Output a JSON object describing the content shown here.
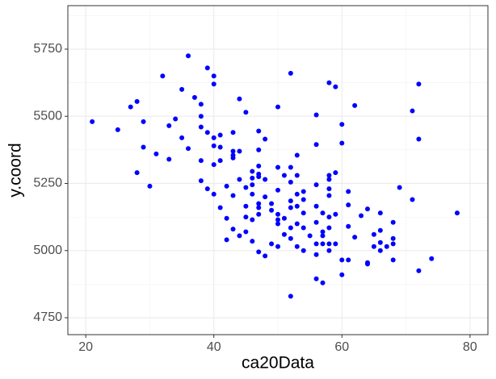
{
  "chart_data": {
    "type": "scatter",
    "x_label": "ca20Data",
    "y_label": "y.coord",
    "color": "#0000ff",
    "grid": true,
    "xlim": [
      17.2,
      82.8
    ],
    "xticks": [
      20,
      40,
      60,
      80
    ],
    "x_minor_ticks": [
      30,
      50,
      70
    ],
    "ylim": [
      4687,
      5912
    ],
    "yticks": [
      4750,
      5000,
      5250,
      5500,
      5750
    ],
    "y_minor_ticks": [
      4875,
      5125,
      5375,
      5625,
      5875
    ],
    "x": [
      21,
      25,
      27,
      28,
      29,
      28,
      29,
      30,
      31,
      32,
      33,
      34,
      33,
      35,
      35,
      36,
      36,
      37,
      38,
      38,
      38,
      38,
      38,
      39,
      39,
      39,
      40,
      40,
      40,
      40,
      40,
      40,
      41,
      41,
      41,
      41,
      42,
      42,
      42,
      43,
      43,
      43,
      43,
      43,
      43,
      44,
      44,
      44,
      44,
      45,
      45,
      45,
      45,
      45,
      46,
      46,
      46,
      46,
      46,
      46,
      47,
      47,
      47,
      47,
      47,
      47,
      47,
      47,
      47,
      48,
      48,
      48,
      48,
      49,
      49,
      49,
      50,
      50,
      50,
      50,
      50,
      50,
      50,
      51,
      51,
      51,
      52,
      52,
      52,
      52,
      52,
      52,
      52,
      52,
      53,
      53,
      53,
      53,
      53,
      53,
      54,
      54,
      54,
      54,
      54,
      55,
      56,
      56,
      56,
      56,
      56,
      56,
      56,
      56,
      57,
      57,
      57,
      57,
      57,
      58,
      58,
      58,
      58,
      58,
      58,
      58,
      58,
      58,
      59,
      59,
      59,
      59,
      60,
      60,
      60,
      60,
      61,
      61,
      61,
      61,
      62,
      62,
      63,
      64,
      64,
      64,
      65,
      65,
      66,
      66,
      66,
      66,
      67,
      68,
      68,
      68,
      68,
      69,
      71,
      71,
      72,
      72,
      72,
      74,
      78
    ],
    "y": [
      5480,
      5450,
      5535,
      5555,
      5480,
      5290,
      5385,
      5240,
      5360,
      5650,
      5465,
      5490,
      5340,
      5600,
      5420,
      5380,
      5725,
      5570,
      5545,
      5500,
      5460,
      5335,
      5260,
      5680,
      5440,
      5230,
      5650,
      5620,
      5420,
      5390,
      5320,
      5210,
      5430,
      5385,
      5335,
      5160,
      5240,
      5120,
      5040,
      5440,
      5370,
      5355,
      5345,
      5205,
      5080,
      5565,
      5370,
      5265,
      5055,
      5515,
      5235,
      5165,
      5125,
      5070,
      5295,
      5270,
      5245,
      5210,
      5115,
      5035,
      5445,
      5375,
      5315,
      5285,
      5275,
      5175,
      5160,
      5135,
      4995,
      5415,
      5265,
      5200,
      4980,
      5175,
      5150,
      5025,
      5535,
      5310,
      5225,
      5135,
      5115,
      5100,
      5015,
      5280,
      5120,
      5060,
      5660,
      5310,
      5255,
      5185,
      5160,
      5085,
      5045,
      4830,
      5355,
      5280,
      5210,
      5165,
      5100,
      5015,
      5220,
      5190,
      5140,
      5085,
      5000,
      5055,
      5505,
      5395,
      5245,
      5165,
      5105,
      5025,
      4985,
      4895,
      5140,
      5070,
      5055,
      5025,
      4880,
      5625,
      5280,
      5265,
      5230,
      5205,
      5125,
      5085,
      5025,
      5000,
      5610,
      5290,
      5135,
      5025,
      5470,
      5400,
      4965,
      4910,
      5220,
      5170,
      5090,
      4965,
      5540,
      5050,
      5130,
      5155,
      4955,
      4950,
      5060,
      5015,
      5140,
      5075,
      5030,
      5000,
      5015,
      5045,
      5025,
      5105,
      4965,
      5235,
      5520,
      5190,
      5620,
      5415,
      4925,
      4970,
      5140
    ]
  }
}
